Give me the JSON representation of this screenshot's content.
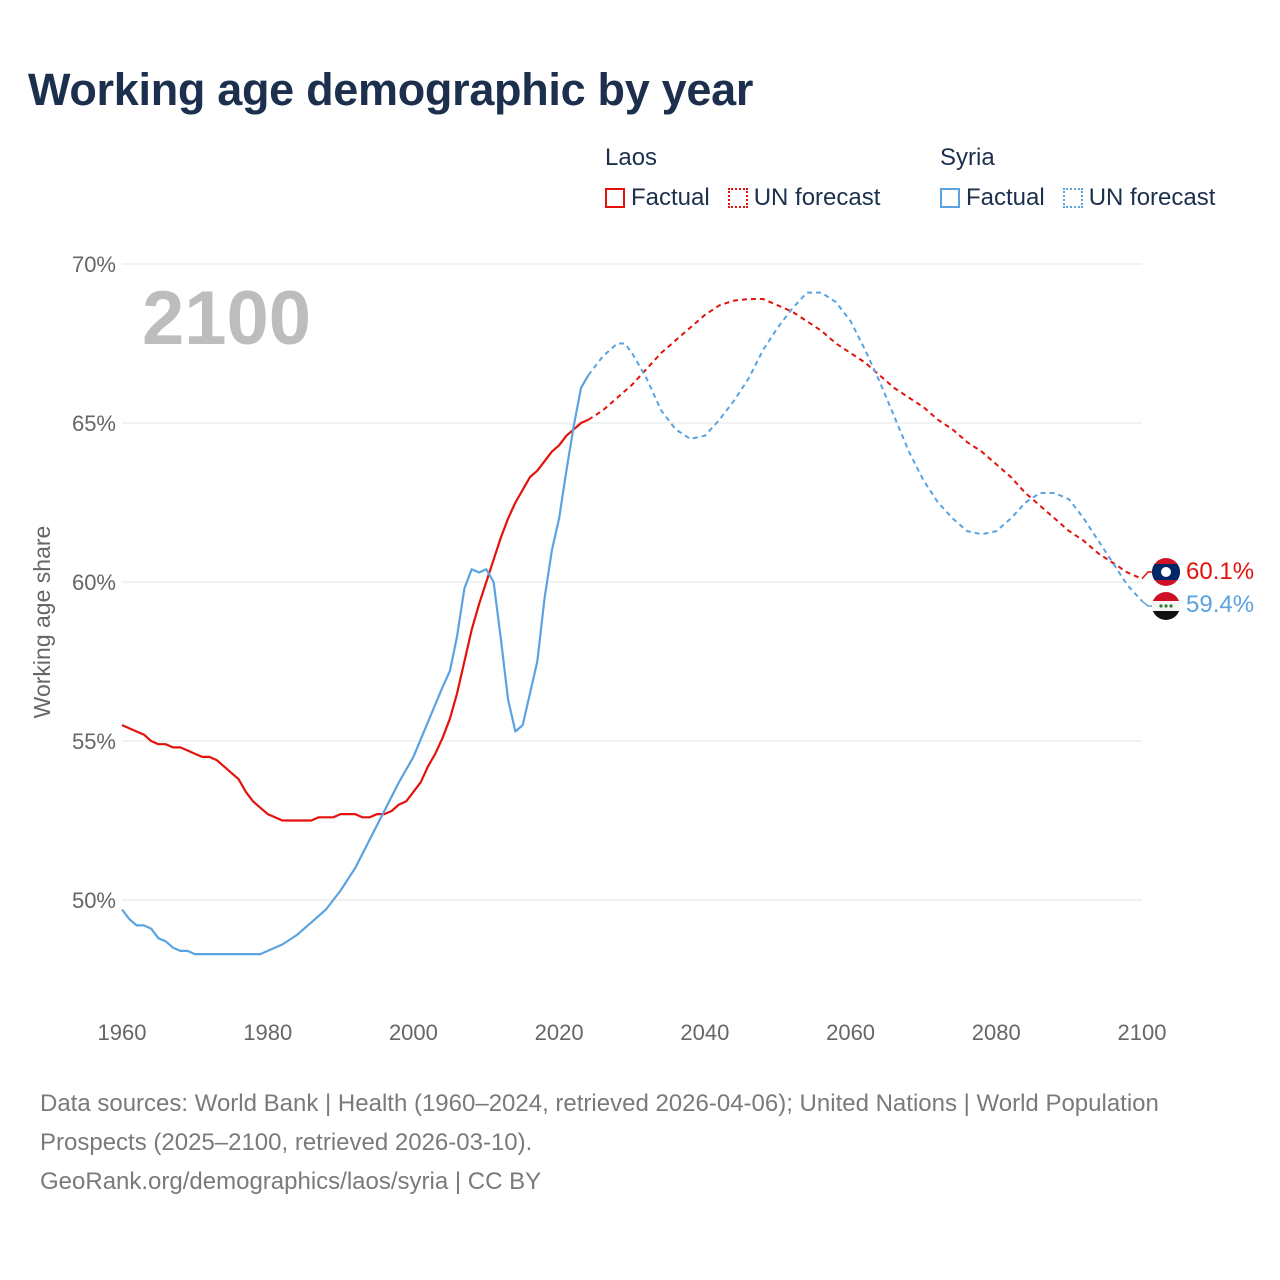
{
  "title": "Working age demographic by year",
  "legend": {
    "groups": [
      {
        "name": "Laos",
        "color": "#e3120b",
        "factual_label": "Factual",
        "forecast_label": "UN forecast"
      },
      {
        "name": "Syria",
        "color": "#5ba3e0",
        "factual_label": "Factual",
        "forecast_label": "UN forecast"
      }
    ]
  },
  "footer": {
    "sources": "Data sources: World Bank | Health (1960–2024, retrieved 2026-04-06); United Nations | World Population Prospects (2025–2100, retrieved 2026-03-10).",
    "credit": "GeoRank.org/demographics/laos/syria | CC BY"
  },
  "chart_data": {
    "type": "line",
    "title": "Working age demographic by year",
    "xlabel": "",
    "ylabel": "Working age share",
    "xlim": [
      1960,
      2100
    ],
    "ylim": [
      47,
      71
    ],
    "x_ticks": [
      1960,
      1980,
      2000,
      2020,
      2040,
      2060,
      2080,
      2100
    ],
    "y_ticks": [
      50,
      55,
      60,
      65,
      70
    ],
    "y_tick_labels": [
      "50%",
      "55%",
      "60%",
      "65%",
      "70%"
    ],
    "year_label": "2100",
    "grid": true,
    "series": [
      {
        "name": "Laos",
        "color": "#e3120b",
        "end_label": "60.1%",
        "factual": [
          [
            1960,
            55.5
          ],
          [
            1962,
            55.3
          ],
          [
            1963,
            55.2
          ],
          [
            1964,
            55.0
          ],
          [
            1965,
            54.9
          ],
          [
            1966,
            54.9
          ],
          [
            1967,
            54.8
          ],
          [
            1968,
            54.8
          ],
          [
            1969,
            54.7
          ],
          [
            1970,
            54.6
          ],
          [
            1971,
            54.5
          ],
          [
            1972,
            54.5
          ],
          [
            1973,
            54.4
          ],
          [
            1974,
            54.2
          ],
          [
            1975,
            54.0
          ],
          [
            1976,
            53.8
          ],
          [
            1977,
            53.4
          ],
          [
            1978,
            53.1
          ],
          [
            1979,
            52.9
          ],
          [
            1980,
            52.7
          ],
          [
            1981,
            52.6
          ],
          [
            1982,
            52.5
          ],
          [
            1984,
            52.5
          ],
          [
            1986,
            52.5
          ],
          [
            1987,
            52.6
          ],
          [
            1988,
            52.6
          ],
          [
            1989,
            52.6
          ],
          [
            1990,
            52.7
          ],
          [
            1992,
            52.7
          ],
          [
            1993,
            52.6
          ],
          [
            1994,
            52.6
          ],
          [
            1995,
            52.7
          ],
          [
            1996,
            52.7
          ],
          [
            1997,
            52.8
          ],
          [
            1998,
            53.0
          ],
          [
            1999,
            53.1
          ],
          [
            2000,
            53.4
          ],
          [
            2001,
            53.7
          ],
          [
            2002,
            54.2
          ],
          [
            2003,
            54.6
          ],
          [
            2004,
            55.1
          ],
          [
            2005,
            55.7
          ],
          [
            2006,
            56.5
          ],
          [
            2007,
            57.5
          ],
          [
            2008,
            58.5
          ],
          [
            2009,
            59.3
          ],
          [
            2010,
            60.0
          ],
          [
            2011,
            60.7
          ],
          [
            2012,
            61.4
          ],
          [
            2013,
            62.0
          ],
          [
            2014,
            62.5
          ],
          [
            2015,
            62.9
          ],
          [
            2016,
            63.3
          ],
          [
            2017,
            63.5
          ],
          [
            2018,
            63.8
          ],
          [
            2019,
            64.1
          ],
          [
            2020,
            64.3
          ],
          [
            2021,
            64.6
          ],
          [
            2022,
            64.8
          ],
          [
            2023,
            65.0
          ],
          [
            2024,
            65.1
          ]
        ],
        "forecast": [
          [
            2024,
            65.1
          ],
          [
            2026,
            65.4
          ],
          [
            2028,
            65.8
          ],
          [
            2030,
            66.2
          ],
          [
            2032,
            66.7
          ],
          [
            2034,
            67.2
          ],
          [
            2036,
            67.6
          ],
          [
            2038,
            68.0
          ],
          [
            2040,
            68.4
          ],
          [
            2042,
            68.7
          ],
          [
            2044,
            68.85
          ],
          [
            2046,
            68.9
          ],
          [
            2048,
            68.9
          ],
          [
            2050,
            68.7
          ],
          [
            2052,
            68.5
          ],
          [
            2054,
            68.2
          ],
          [
            2056,
            67.9
          ],
          [
            2058,
            67.5
          ],
          [
            2060,
            67.2
          ],
          [
            2062,
            66.9
          ],
          [
            2064,
            66.5
          ],
          [
            2066,
            66.1
          ],
          [
            2068,
            65.8
          ],
          [
            2070,
            65.5
          ],
          [
            2072,
            65.1
          ],
          [
            2074,
            64.8
          ],
          [
            2076,
            64.4
          ],
          [
            2078,
            64.1
          ],
          [
            2080,
            63.7
          ],
          [
            2082,
            63.3
          ],
          [
            2084,
            62.8
          ],
          [
            2086,
            62.4
          ],
          [
            2088,
            62.0
          ],
          [
            2090,
            61.6
          ],
          [
            2092,
            61.3
          ],
          [
            2094,
            60.9
          ],
          [
            2096,
            60.6
          ],
          [
            2098,
            60.3
          ],
          [
            2100,
            60.1
          ]
        ]
      },
      {
        "name": "Syria",
        "color": "#5ba3e0",
        "end_label": "59.4%",
        "factual": [
          [
            1960,
            49.7
          ],
          [
            1961,
            49.4
          ],
          [
            1962,
            49.2
          ],
          [
            1963,
            49.2
          ],
          [
            1964,
            49.1
          ],
          [
            1965,
            48.8
          ],
          [
            1966,
            48.7
          ],
          [
            1967,
            48.5
          ],
          [
            1968,
            48.4
          ],
          [
            1969,
            48.4
          ],
          [
            1970,
            48.3
          ],
          [
            1972,
            48.3
          ],
          [
            1974,
            48.3
          ],
          [
            1976,
            48.3
          ],
          [
            1978,
            48.3
          ],
          [
            1979,
            48.3
          ],
          [
            1980,
            48.4
          ],
          [
            1982,
            48.6
          ],
          [
            1984,
            48.9
          ],
          [
            1986,
            49.3
          ],
          [
            1988,
            49.7
          ],
          [
            1990,
            50.3
          ],
          [
            1992,
            51.0
          ],
          [
            1994,
            51.9
          ],
          [
            1996,
            52.8
          ],
          [
            1998,
            53.7
          ],
          [
            2000,
            54.5
          ],
          [
            2002,
            55.6
          ],
          [
            2004,
            56.7
          ],
          [
            2005,
            57.2
          ],
          [
            2006,
            58.3
          ],
          [
            2007,
            59.8
          ],
          [
            2008,
            60.4
          ],
          [
            2009,
            60.3
          ],
          [
            2010,
            60.4
          ],
          [
            2011,
            60.0
          ],
          [
            2012,
            58.2
          ],
          [
            2013,
            56.3
          ],
          [
            2014,
            55.3
          ],
          [
            2015,
            55.5
          ],
          [
            2016,
            56.5
          ],
          [
            2017,
            57.5
          ],
          [
            2018,
            59.5
          ],
          [
            2019,
            61.0
          ],
          [
            2020,
            62.0
          ],
          [
            2021,
            63.5
          ],
          [
            2022,
            64.9
          ],
          [
            2023,
            66.1
          ],
          [
            2024,
            66.5
          ]
        ],
        "forecast": [
          [
            2024,
            66.5
          ],
          [
            2026,
            67.1
          ],
          [
            2028,
            67.5
          ],
          [
            2029,
            67.5
          ],
          [
            2030,
            67.2
          ],
          [
            2032,
            66.4
          ],
          [
            2034,
            65.4
          ],
          [
            2036,
            64.8
          ],
          [
            2038,
            64.5
          ],
          [
            2040,
            64.6
          ],
          [
            2042,
            65.1
          ],
          [
            2044,
            65.7
          ],
          [
            2046,
            66.4
          ],
          [
            2048,
            67.3
          ],
          [
            2050,
            68.0
          ],
          [
            2052,
            68.6
          ],
          [
            2054,
            69.1
          ],
          [
            2056,
            69.1
          ],
          [
            2058,
            68.8
          ],
          [
            2060,
            68.2
          ],
          [
            2062,
            67.3
          ],
          [
            2064,
            66.3
          ],
          [
            2066,
            65.2
          ],
          [
            2068,
            64.1
          ],
          [
            2070,
            63.2
          ],
          [
            2072,
            62.5
          ],
          [
            2074,
            62.0
          ],
          [
            2076,
            61.6
          ],
          [
            2078,
            61.5
          ],
          [
            2080,
            61.6
          ],
          [
            2082,
            62.0
          ],
          [
            2084,
            62.5
          ],
          [
            2086,
            62.8
          ],
          [
            2088,
            62.8
          ],
          [
            2090,
            62.6
          ],
          [
            2092,
            62.0
          ],
          [
            2094,
            61.3
          ],
          [
            2096,
            60.6
          ],
          [
            2098,
            59.9
          ],
          [
            2100,
            59.4
          ]
        ]
      }
    ]
  }
}
